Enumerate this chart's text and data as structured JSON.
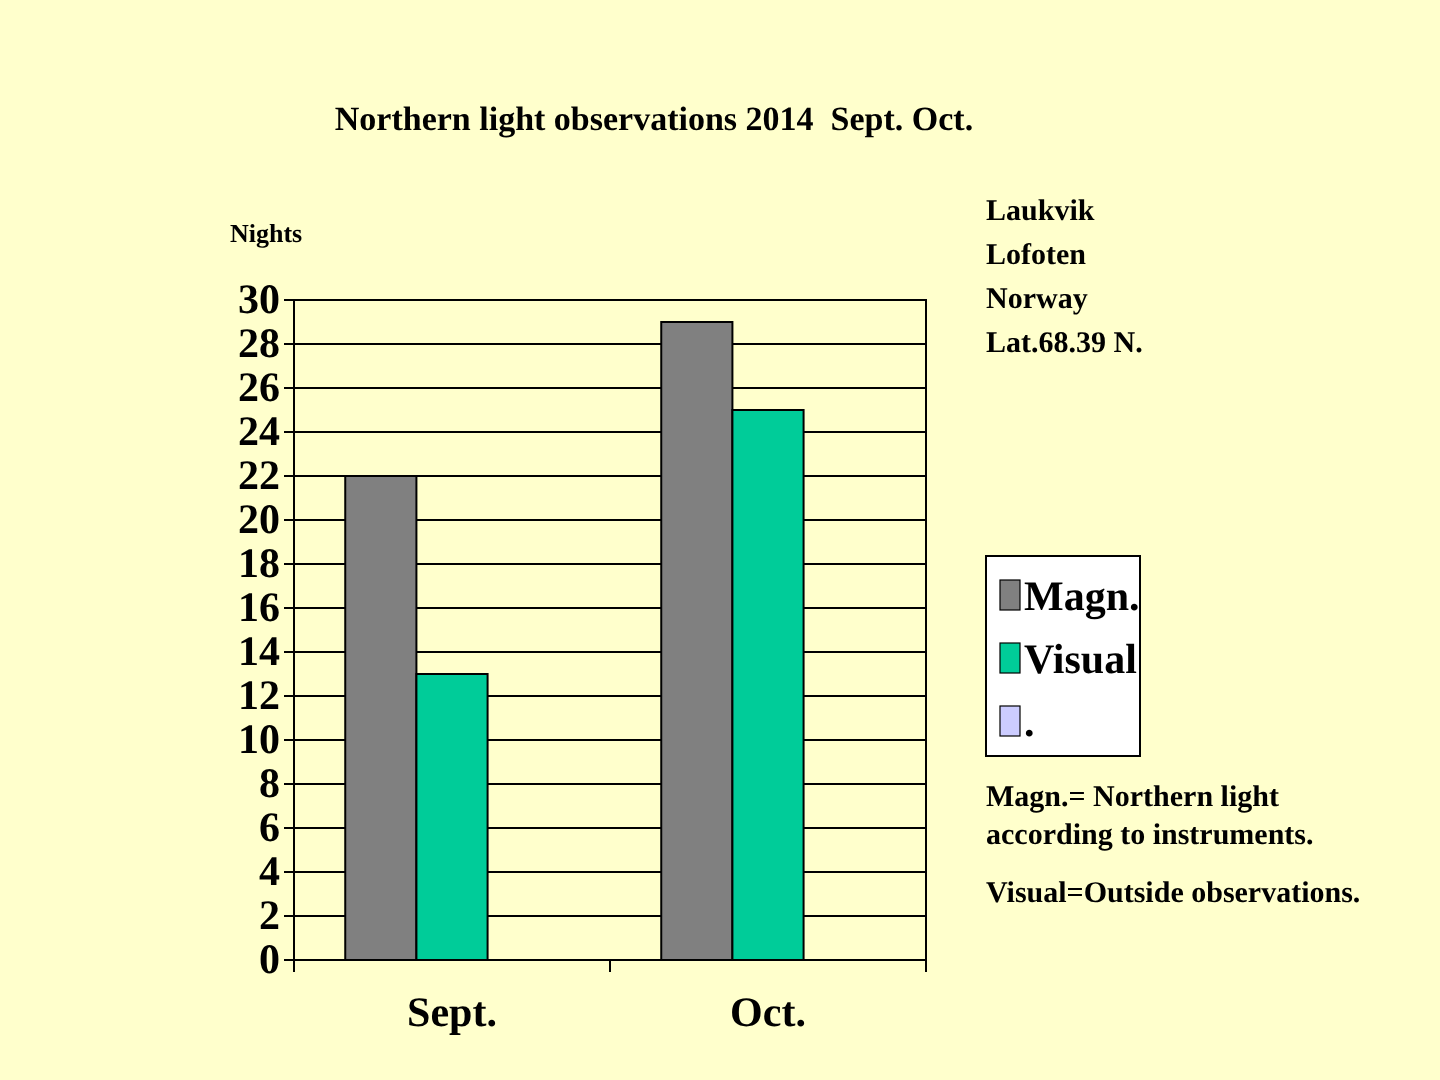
{
  "chart_data": {
    "type": "bar",
    "title": "Northern light observations 2014  Sept. Oct.",
    "ylabel": "Nights",
    "categories": [
      "Sept.",
      "Oct."
    ],
    "series": [
      {
        "name": "Magn.",
        "color": "#808080",
        "values": [
          22,
          29
        ]
      },
      {
        "name": "Visual",
        "color": "#00cc99",
        "values": [
          13,
          25
        ]
      },
      {
        "name": ".",
        "color": "#ccccff",
        "values": [
          null,
          null
        ]
      }
    ],
    "ylim": [
      0,
      30
    ],
    "yticks": [
      0,
      2,
      4,
      6,
      8,
      10,
      12,
      14,
      16,
      18,
      20,
      22,
      24,
      26,
      28,
      30
    ],
    "grid": "y",
    "legend": "right",
    "annotations": [
      "Laukvik\nLofoten\nNorway\nLat.68.39 N.",
      "Magn.= Northern light according to instruments.",
      "Visual=Outside observations."
    ]
  }
}
